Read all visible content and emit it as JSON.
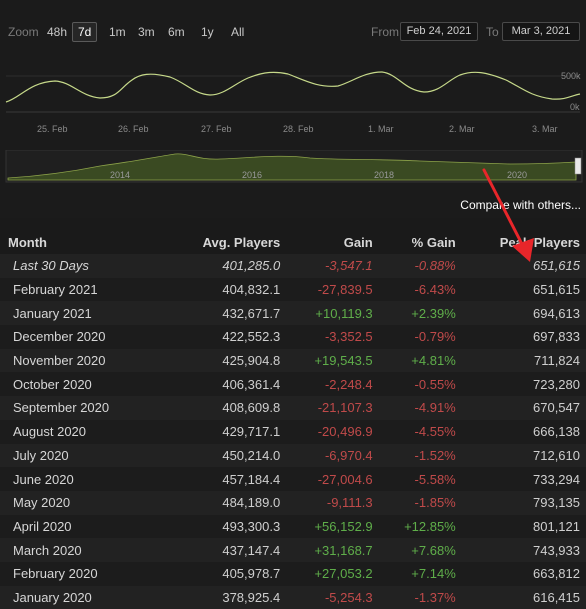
{
  "chart": {
    "zoom_label": "Zoom",
    "zoom_options": [
      "48h",
      "7d",
      "1m",
      "3m",
      "6m",
      "1y",
      "All"
    ],
    "zoom_selected": "7d",
    "from_label": "From",
    "from_value": "Feb 24, 2021",
    "to_label": "To",
    "to_value": "Mar 3, 2021",
    "y_labels": [
      "500k",
      "0k"
    ],
    "x_labels": [
      "25. Feb",
      "26. Feb",
      "27. Feb",
      "28. Feb",
      "1. Mar",
      "2. Mar",
      "3. Mar"
    ],
    "navigator_labels": [
      "2014",
      "2016",
      "2018",
      "2020"
    ],
    "line_color": "#c6d98a",
    "nav_fill_color": "#3a4a22"
  },
  "compare_label": "Compare with others...",
  "table": {
    "headers": [
      "Month",
      "Avg. Players",
      "Gain",
      "% Gain",
      "Peak Players"
    ],
    "rows": [
      {
        "month": "Last 30 Days",
        "avg": "401,285.0",
        "gain": "-3,547.1",
        "pct": "-0.88%",
        "peak": "651,615",
        "sign": "neg"
      },
      {
        "month": "February 2021",
        "avg": "404,832.1",
        "gain": "-27,839.5",
        "pct": "-6.43%",
        "peak": "651,615",
        "sign": "neg"
      },
      {
        "month": "January 2021",
        "avg": "432,671.7",
        "gain": "+10,119.3",
        "pct": "+2.39%",
        "peak": "694,613",
        "sign": "pos"
      },
      {
        "month": "December 2020",
        "avg": "422,552.3",
        "gain": "-3,352.5",
        "pct": "-0.79%",
        "peak": "697,833",
        "sign": "neg"
      },
      {
        "month": "November 2020",
        "avg": "425,904.8",
        "gain": "+19,543.5",
        "pct": "+4.81%",
        "peak": "711,824",
        "sign": "pos"
      },
      {
        "month": "October 2020",
        "avg": "406,361.4",
        "gain": "-2,248.4",
        "pct": "-0.55%",
        "peak": "723,280",
        "sign": "neg"
      },
      {
        "month": "September 2020",
        "avg": "408,609.8",
        "gain": "-21,107.3",
        "pct": "-4.91%",
        "peak": "670,547",
        "sign": "neg"
      },
      {
        "month": "August 2020",
        "avg": "429,717.1",
        "gain": "-20,496.9",
        "pct": "-4.55%",
        "peak": "666,138",
        "sign": "neg"
      },
      {
        "month": "July 2020",
        "avg": "450,214.0",
        "gain": "-6,970.4",
        "pct": "-1.52%",
        "peak": "712,610",
        "sign": "neg"
      },
      {
        "month": "June 2020",
        "avg": "457,184.4",
        "gain": "-27,004.6",
        "pct": "-5.58%",
        "peak": "733,294",
        "sign": "neg"
      },
      {
        "month": "May 2020",
        "avg": "484,189.0",
        "gain": "-9,111.3",
        "pct": "-1.85%",
        "peak": "793,135",
        "sign": "neg"
      },
      {
        "month": "April 2020",
        "avg": "493,300.3",
        "gain": "+56,152.9",
        "pct": "+12.85%",
        "peak": "801,121",
        "sign": "pos"
      },
      {
        "month": "March 2020",
        "avg": "437,147.4",
        "gain": "+31,168.7",
        "pct": "+7.68%",
        "peak": "743,933",
        "sign": "pos"
      },
      {
        "month": "February 2020",
        "avg": "405,978.7",
        "gain": "+27,053.2",
        "pct": "+7.14%",
        "peak": "663,812",
        "sign": "pos"
      },
      {
        "month": "January 2020",
        "avg": "378,925.4",
        "gain": "-5,254.3",
        "pct": "-1.37%",
        "peak": "616,415",
        "sign": "neg"
      }
    ]
  },
  "annotation": {
    "arrow_color": "#e8262a"
  }
}
